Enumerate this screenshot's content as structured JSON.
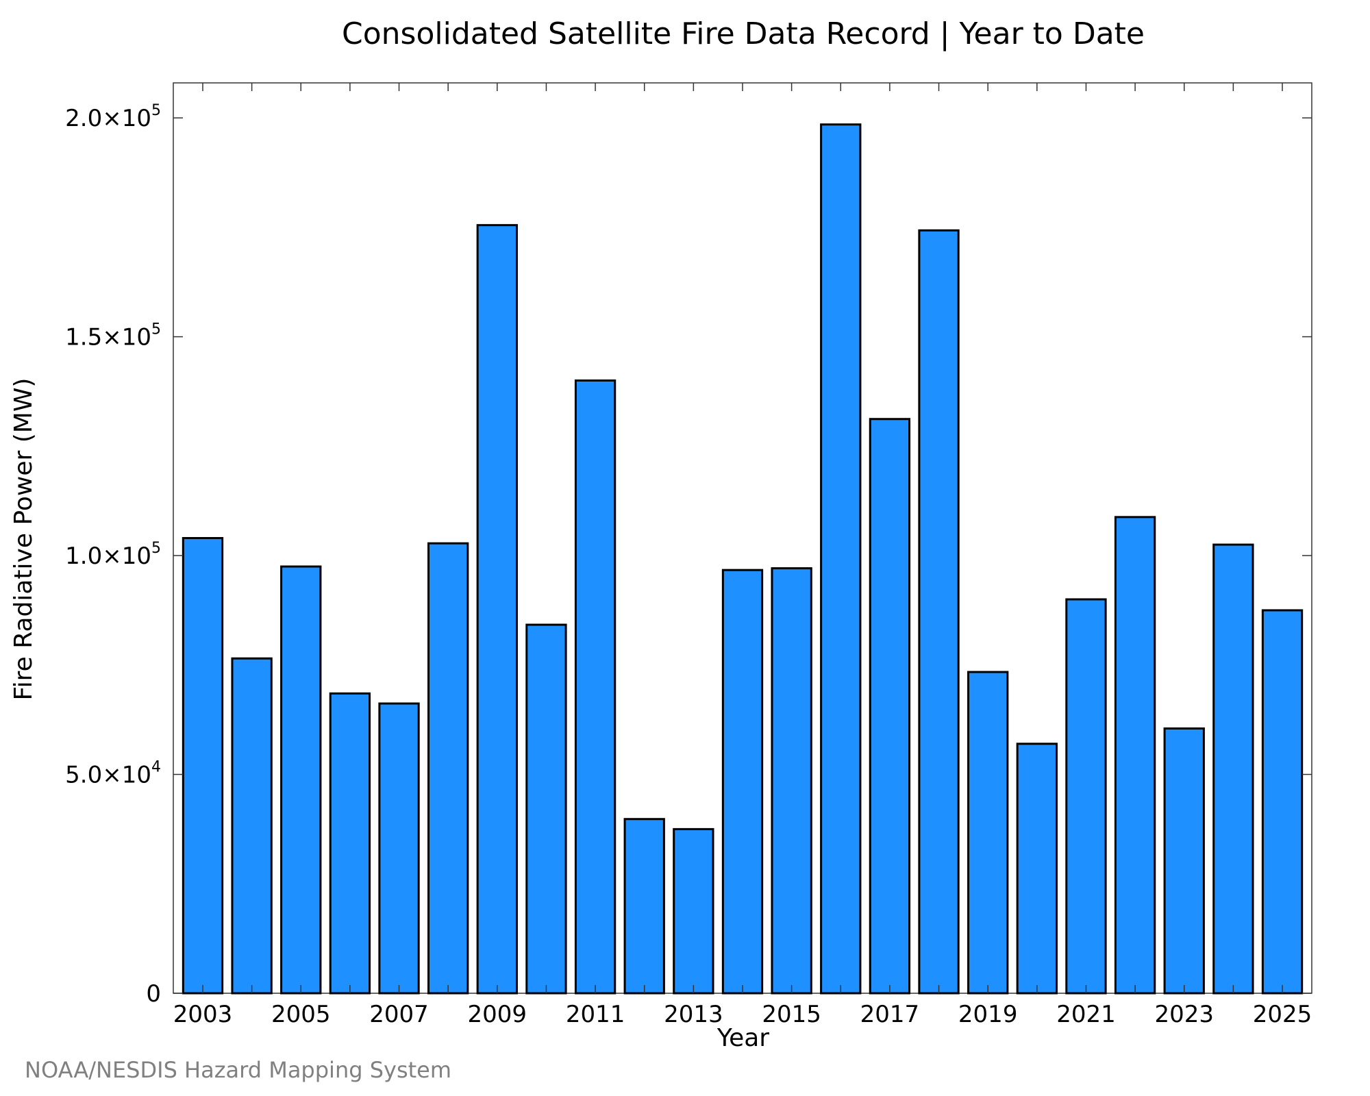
{
  "chart_data": {
    "type": "bar",
    "title": "Consolidated Satellite Fire Data Record | Year to Date",
    "xlabel": "Year",
    "ylabel": "Fire Radiative Power (MW)",
    "credit": "NOAA/NESDIS Hazard Mapping System",
    "bar_color": "#1E90FF",
    "edge_color": "#000000",
    "ylim": [
      0,
      208000
    ],
    "categories": [
      "2003",
      "2004",
      "2005",
      "2006",
      "2007",
      "2008",
      "2009",
      "2010",
      "2011",
      "2012",
      "2013",
      "2014",
      "2015",
      "2016",
      "2017",
      "2018",
      "2019",
      "2020",
      "2021",
      "2022",
      "2023",
      "2024",
      "2025"
    ],
    "values": [
      104000,
      76500,
      97500,
      68500,
      66200,
      102800,
      175500,
      84200,
      140000,
      39800,
      37500,
      96700,
      97100,
      198500,
      131200,
      174300,
      73400,
      57000,
      90000,
      108800,
      60500,
      102500,
      87500
    ],
    "x_tick_labels": [
      "2003",
      "2005",
      "2007",
      "2009",
      "2011",
      "2013",
      "2015",
      "2017",
      "2019",
      "2021",
      "2023",
      "2025"
    ],
    "y_ticks": [
      {
        "value": 0,
        "mantissa": "0",
        "exponent": ""
      },
      {
        "value": 50000,
        "mantissa": "5.0×10",
        "exponent": "4"
      },
      {
        "value": 100000,
        "mantissa": "1.0×10",
        "exponent": "5"
      },
      {
        "value": 150000,
        "mantissa": "1.5×10",
        "exponent": "5"
      },
      {
        "value": 200000,
        "mantissa": "2.0×10",
        "exponent": "5"
      }
    ]
  }
}
